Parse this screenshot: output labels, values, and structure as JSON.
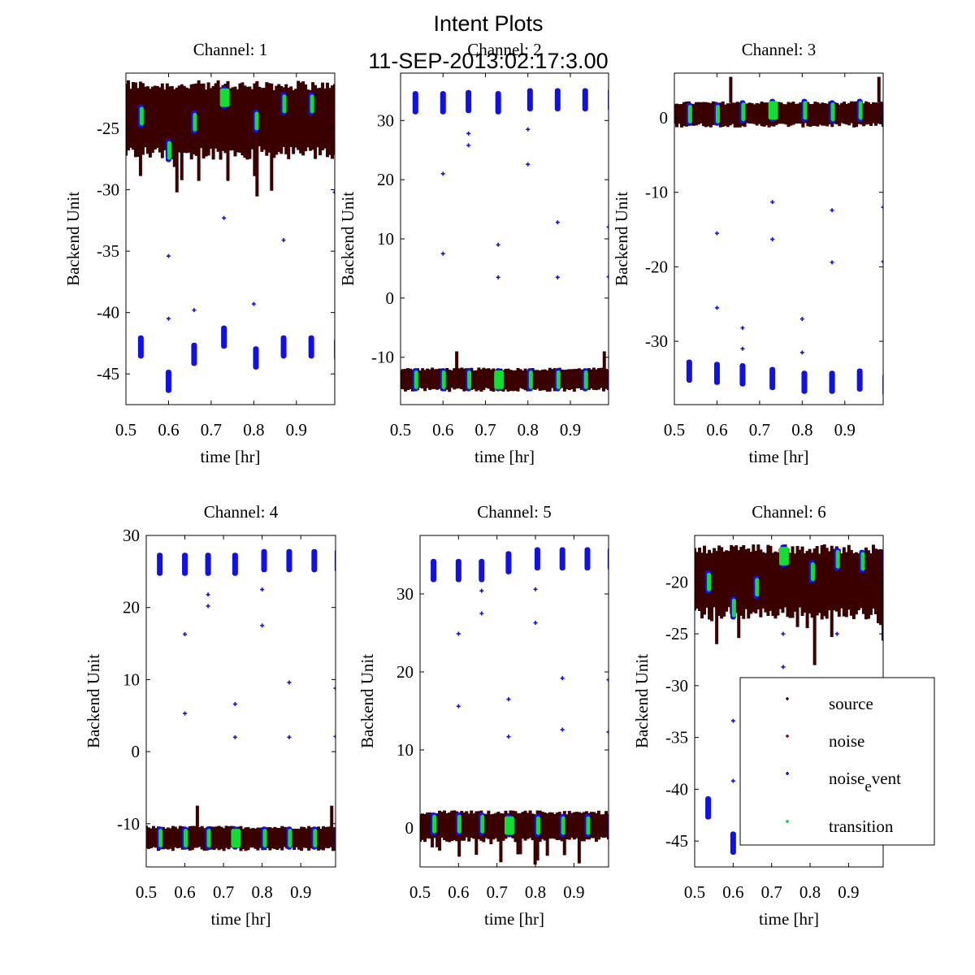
{
  "figure": {
    "title_line1": "Intent Plots",
    "title_line2": "11-SEP-2013:02:17:3.00"
  },
  "chart_data": {
    "type": "scatter",
    "title": "Intent Plots 11-SEP-2013:02:17:3.00",
    "legend": {
      "placement": "inside channel 6 subplot, lower-right",
      "entries": [
        {
          "label": "source",
          "color": "#3a0000",
          "marker": "+"
        },
        {
          "label": "noise",
          "color": "#8b0000",
          "marker": "+"
        },
        {
          "label": "noise_event",
          "label_display": "noise",
          "label_sub": "e",
          "label_rest": "vent",
          "color": "#0000ff",
          "marker": "+"
        },
        {
          "label": "transition",
          "color": "#00cc33",
          "marker": "+"
        }
      ]
    },
    "colors": {
      "source": "#3a0000",
      "noise": "#8b0000",
      "noise_event": "#1010ee",
      "transition": "#11dd33"
    },
    "event_times": [
      0.535,
      0.6,
      0.66,
      0.73,
      0.805,
      0.87,
      0.935,
      0.995
    ],
    "subplots": [
      {
        "title": "Channel: 1",
        "xlabel": "time [hr]",
        "ylabel": "Backend Unit",
        "xlim": [
          0.5,
          0.99
        ],
        "ylim": [
          -47.5,
          -20.5
        ],
        "xticks": [
          0.5,
          0.6,
          0.7,
          0.8,
          0.9
        ],
        "xtick_labels": [
          "0.5",
          "0.6",
          "0.7",
          "0.8",
          "0.9"
        ],
        "yticks": [
          -45,
          -40,
          -35,
          -30,
          -25
        ],
        "ytick_labels": [
          "-45",
          "-40",
          "-35",
          "-30",
          "-25"
        ],
        "source_band": {
          "top": -21.5,
          "bottom": -27.0,
          "spike_min": -31.0
        },
        "event_clusters_high": [
          -24.0,
          -26.8,
          -24.5,
          -22.5,
          -24.4,
          -23.0,
          -23.0,
          -23.5
        ],
        "event_clusters_low": [
          -42.8,
          -45.6,
          -43.4,
          -42.0,
          -43.7,
          -42.8,
          -42.8,
          -43.0
        ],
        "outliers": [
          [
            0.6,
            -35.4
          ],
          [
            0.6,
            -40.5
          ],
          [
            0.66,
            -39.8
          ],
          [
            0.73,
            -32.3
          ],
          [
            0.8,
            -39.3
          ],
          [
            0.87,
            -34.1
          ],
          [
            0.99,
            -30.2
          ]
        ]
      },
      {
        "title": "Channel: 2",
        "xlabel": "time [hr]",
        "ylabel": "Backend Unit",
        "xlim": [
          0.5,
          0.99
        ],
        "ylim": [
          -18,
          38
        ],
        "xticks": [
          0.5,
          0.6,
          0.7,
          0.8,
          0.9
        ],
        "xtick_labels": [
          "0.5",
          "0.6",
          "0.7",
          "0.8",
          "0.9"
        ],
        "yticks": [
          -10,
          0,
          10,
          20,
          30
        ],
        "ytick_labels": [
          "-10",
          "0",
          "10",
          "20",
          "30"
        ],
        "source_band": {
          "top": -12.0,
          "bottom": -15.5,
          "spike_max": -9.0
        },
        "event_clusters_high": [
          33.0,
          33.0,
          33.2,
          33.0,
          33.5,
          33.5,
          33.5,
          33.5
        ],
        "event_clusters_low": [
          -13.8,
          -13.8,
          -13.8,
          -13.8,
          -13.8,
          -13.8,
          -13.8,
          -13.8
        ],
        "outliers": [
          [
            0.6,
            21.0
          ],
          [
            0.6,
            7.5
          ],
          [
            0.66,
            27.8
          ],
          [
            0.66,
            25.8
          ],
          [
            0.73,
            9.0
          ],
          [
            0.73,
            3.5
          ],
          [
            0.8,
            28.5
          ],
          [
            0.8,
            22.6
          ],
          [
            0.87,
            12.8
          ],
          [
            0.87,
            3.5
          ],
          [
            0.99,
            12.0
          ],
          [
            0.99,
            3.6
          ]
        ]
      },
      {
        "title": "Channel: 3",
        "xlabel": "time [hr]",
        "ylabel": "Backend Unit",
        "xlim": [
          0.5,
          0.99
        ],
        "ylim": [
          -38.5,
          6
        ],
        "xticks": [
          0.5,
          0.6,
          0.7,
          0.8,
          0.9
        ],
        "xtick_labels": [
          "0.5",
          "0.6",
          "0.7",
          "0.8",
          "0.9"
        ],
        "yticks": [
          -30,
          -20,
          -10,
          0
        ],
        "ytick_labels": [
          "-30",
          "-20",
          "-10",
          "0"
        ],
        "source_band": {
          "top": 2.0,
          "bottom": -1.0,
          "spike_max": 5.5
        },
        "event_clusters_high": [
          0.5,
          0.5,
          0.8,
          1.0,
          1.0,
          0.8,
          1.0,
          0.8
        ],
        "event_clusters_low": [
          -34.0,
          -34.3,
          -34.5,
          -35.0,
          -35.5,
          -35.5,
          -35.2,
          -35.8
        ],
        "outliers": [
          [
            0.6,
            -15.5
          ],
          [
            0.6,
            -25.5
          ],
          [
            0.66,
            -28.2
          ],
          [
            0.66,
            -31.0
          ],
          [
            0.73,
            -11.3
          ],
          [
            0.73,
            -16.3
          ],
          [
            0.8,
            -27.0
          ],
          [
            0.8,
            -31.5
          ],
          [
            0.87,
            -12.4
          ],
          [
            0.87,
            -19.4
          ],
          [
            0.99,
            -12.0
          ],
          [
            0.99,
            -19.3
          ]
        ]
      },
      {
        "title": "Channel: 4",
        "xlabel": "time [hr]",
        "ylabel": "Backend Unit",
        "xlim": [
          0.5,
          0.99
        ],
        "ylim": [
          -16,
          30
        ],
        "xticks": [
          0.5,
          0.6,
          0.7,
          0.8,
          0.9
        ],
        "xtick_labels": [
          "0.5",
          "0.6",
          "0.7",
          "0.8",
          "0.9"
        ],
        "yticks": [
          -10,
          0,
          10,
          20,
          30
        ],
        "ytick_labels": [
          "-10",
          "0",
          "10",
          "20",
          "30"
        ],
        "source_band": {
          "top": -10.5,
          "bottom": -13.5,
          "spike_max": -7.5
        },
        "event_clusters_high": [
          26.0,
          26.0,
          26.0,
          26.0,
          26.5,
          26.5,
          26.5,
          26.5
        ],
        "event_clusters_low": [
          -12.0,
          -12.0,
          -12.0,
          -12.0,
          -12.0,
          -12.0,
          -12.0,
          -12.0
        ],
        "outliers": [
          [
            0.6,
            16.3
          ],
          [
            0.6,
            5.3
          ],
          [
            0.66,
            21.8
          ],
          [
            0.66,
            20.2
          ],
          [
            0.73,
            6.6
          ],
          [
            0.73,
            2.0
          ],
          [
            0.8,
            22.5
          ],
          [
            0.8,
            17.5
          ],
          [
            0.87,
            9.6
          ],
          [
            0.87,
            2.0
          ],
          [
            0.99,
            8.8
          ],
          [
            0.99,
            2.1
          ]
        ]
      },
      {
        "title": "Channel: 5",
        "xlabel": "time [hr]",
        "ylabel": "Backend Unit",
        "xlim": [
          0.5,
          0.99
        ],
        "ylim": [
          -5,
          37.5
        ],
        "xticks": [
          0.5,
          0.6,
          0.7,
          0.8,
          0.9
        ],
        "xtick_labels": [
          "0.5",
          "0.6",
          "0.7",
          "0.8",
          "0.9"
        ],
        "yticks": [
          0,
          10,
          20,
          30
        ],
        "ytick_labels": [
          "0",
          "10",
          "20",
          "30"
        ],
        "source_band": {
          "top": 2.0,
          "bottom": -1.5,
          "spike_min": -4.8
        },
        "event_clusters_high": [
          33.0,
          33.0,
          33.0,
          34.0,
          34.5,
          34.5,
          34.5,
          34.5
        ],
        "event_clusters_low": [
          0.5,
          0.5,
          0.5,
          0.3,
          0.3,
          0.3,
          0.3,
          0.3
        ],
        "outliers": [
          [
            0.6,
            24.9
          ],
          [
            0.6,
            15.6
          ],
          [
            0.66,
            30.4
          ],
          [
            0.66,
            27.5
          ],
          [
            0.73,
            16.5
          ],
          [
            0.73,
            11.7
          ],
          [
            0.8,
            30.6
          ],
          [
            0.8,
            26.3
          ],
          [
            0.87,
            19.2
          ],
          [
            0.87,
            12.6
          ],
          [
            0.99,
            19.0
          ],
          [
            0.99,
            12.3
          ]
        ]
      },
      {
        "title": "Channel: 6",
        "xlabel": "time [hr]",
        "ylabel": "Backend Unit",
        "xlim": [
          0.5,
          0.99
        ],
        "ylim": [
          -47.5,
          -15.5
        ],
        "xticks": [
          0.5,
          0.6,
          0.7,
          0.8,
          0.9
        ],
        "xtick_labels": [
          "0.5",
          "0.6",
          "0.7",
          "0.8",
          "0.9"
        ],
        "yticks": [
          -45,
          -40,
          -35,
          -30,
          -25,
          -20
        ],
        "ytick_labels": [
          "-45",
          "-40",
          "-35",
          "-30",
          "-25",
          "-20"
        ],
        "source_band": {
          "top": -16.8,
          "bottom": -23.0,
          "spike_min": -28.5
        },
        "event_clusters_high": [
          -20.0,
          -22.5,
          -20.5,
          -17.5,
          -19.0,
          -17.8,
          -18.0,
          -18.0
        ],
        "event_clusters_low": [
          -41.8,
          -45.2,
          null,
          null,
          null,
          null,
          null,
          null
        ],
        "outliers": [
          [
            0.6,
            -33.4
          ],
          [
            0.6,
            -39.2
          ],
          [
            0.73,
            -25.0
          ],
          [
            0.73,
            -28.2
          ],
          [
            0.87,
            -25.0
          ],
          [
            0.99,
            -25.0
          ]
        ]
      }
    ]
  }
}
